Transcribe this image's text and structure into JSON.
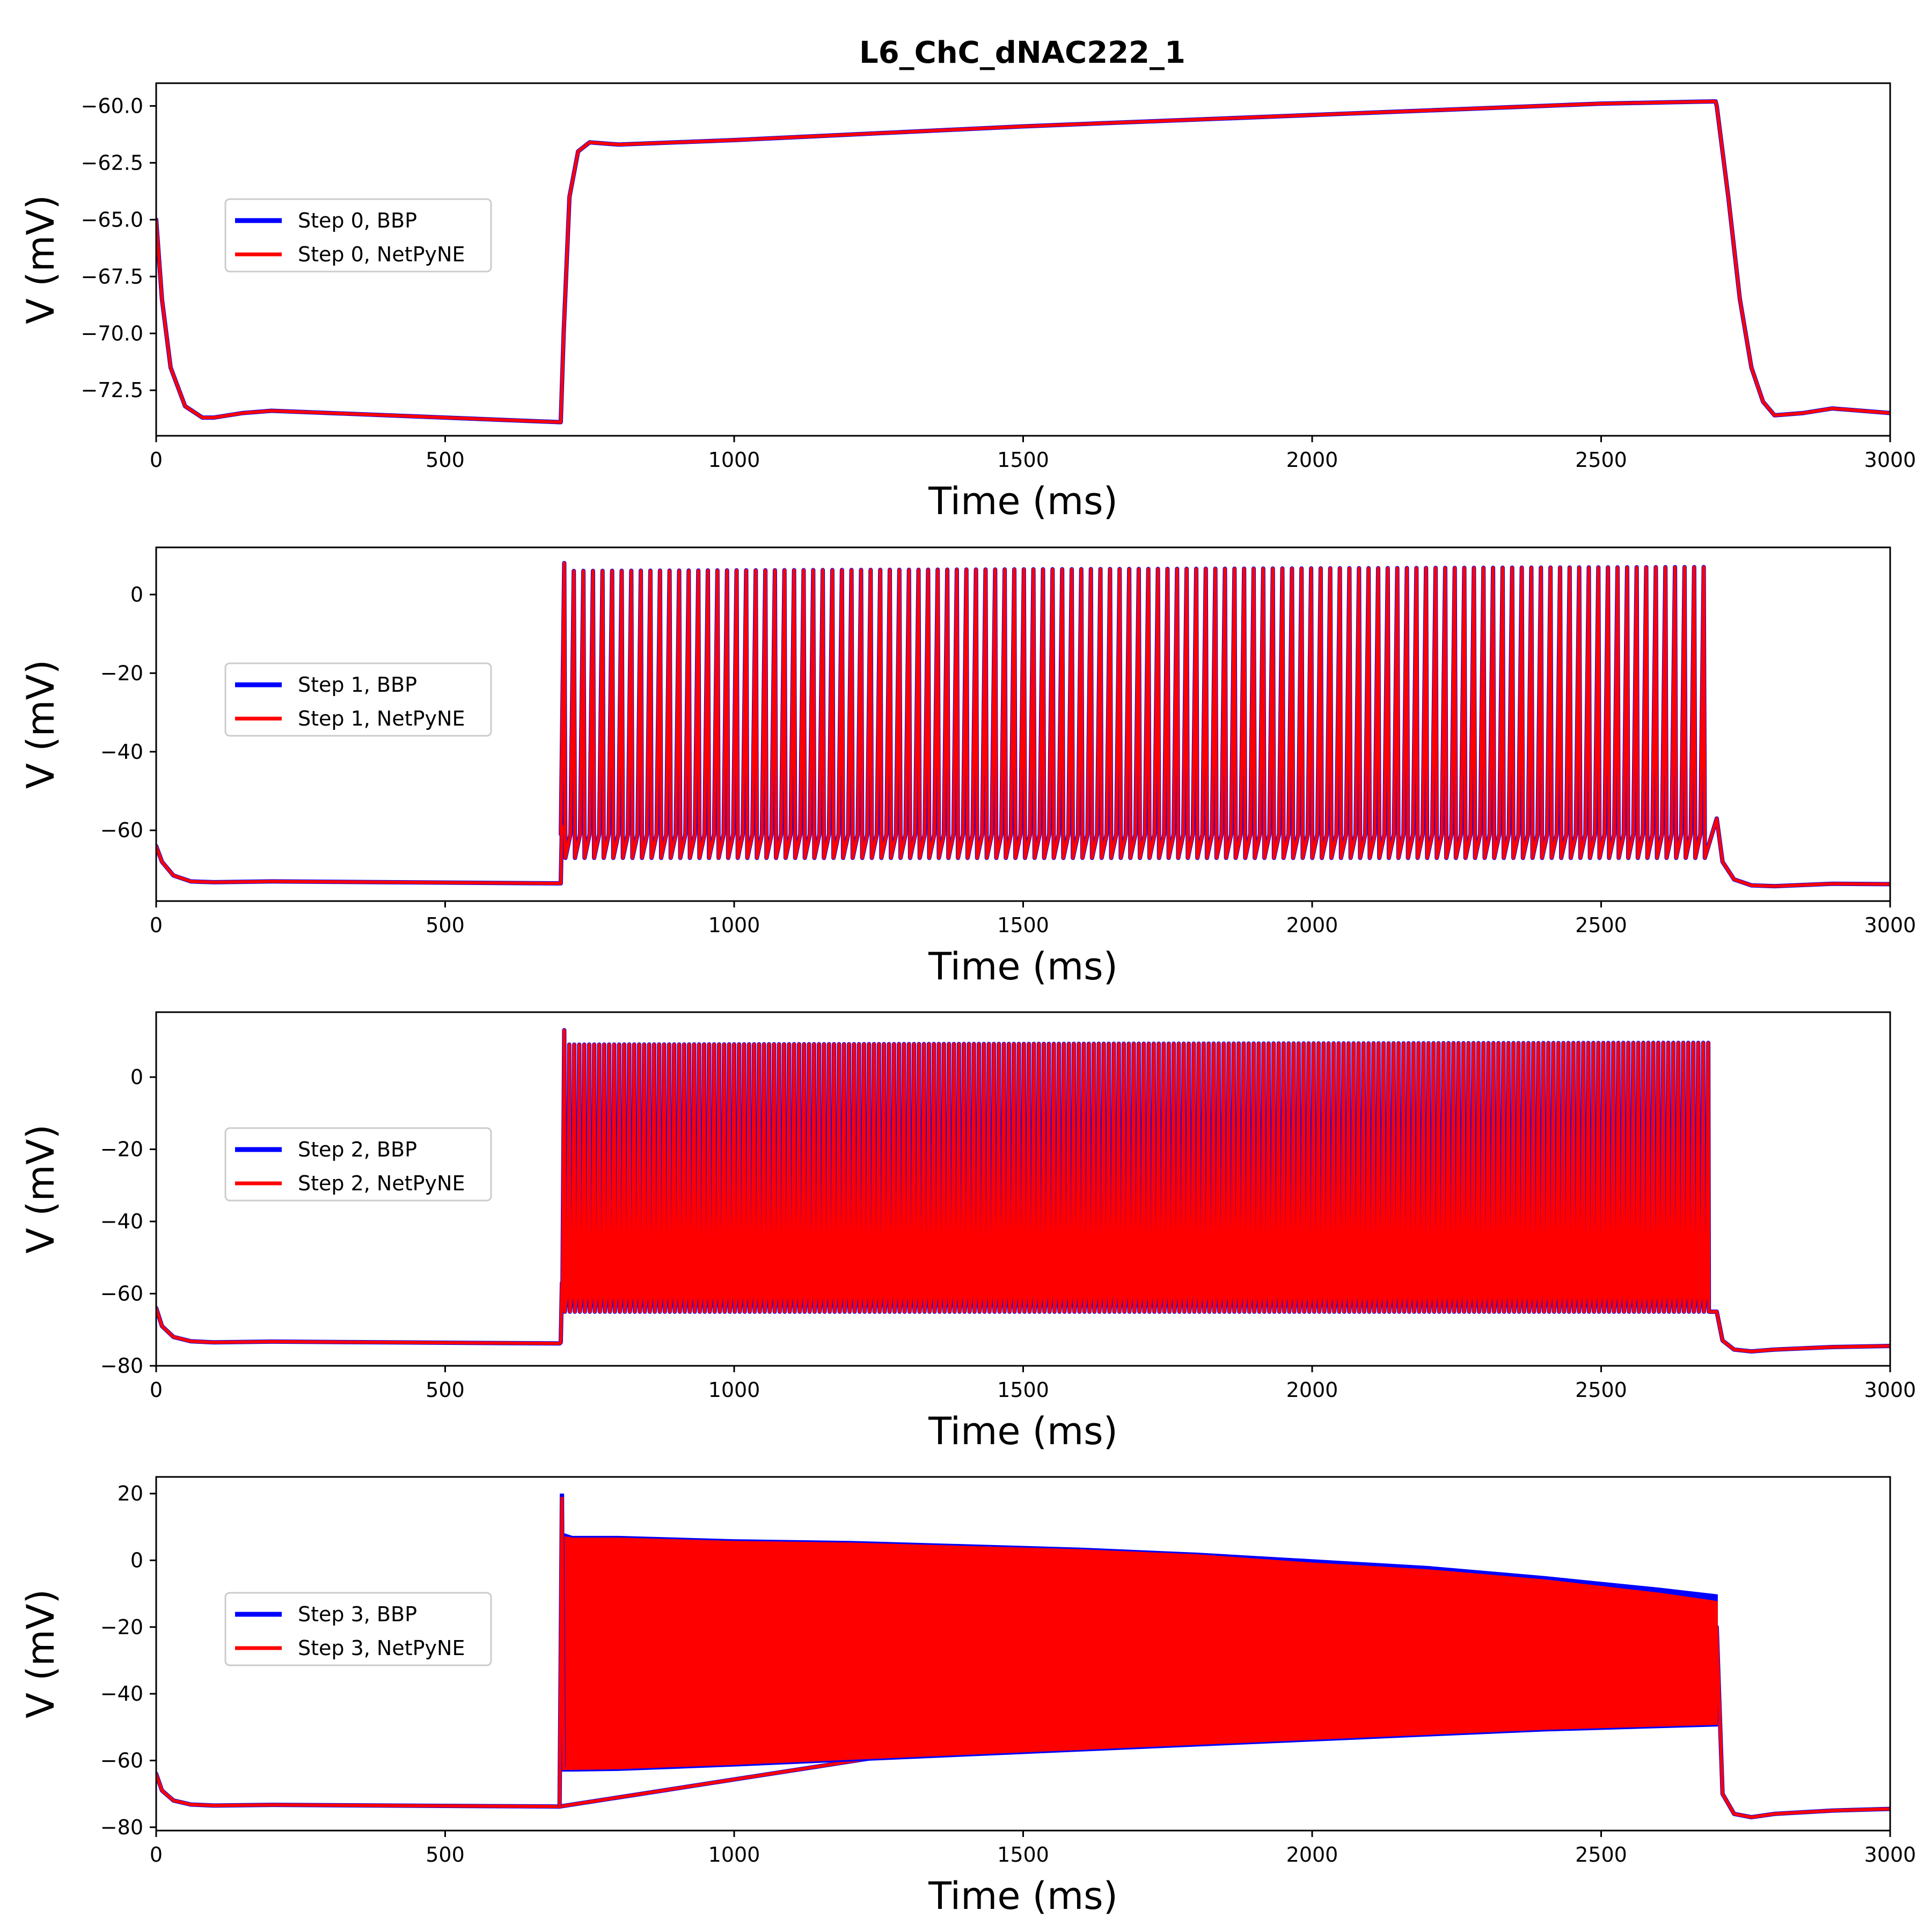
{
  "figure": {
    "title": "L6_ChC_dNAC222_1",
    "colors": {
      "bbp": "#0000ff",
      "netpyne": "#ff0000",
      "axes": "#000000",
      "legend_border": "#cccccc"
    }
  },
  "chart_data": [
    {
      "type": "line",
      "xlabel": "Time (ms)",
      "ylabel": "V (mV)",
      "xlim": [
        0,
        3000
      ],
      "ylim": [
        -74.5,
        -59.0
      ],
      "xticks": [
        0,
        500,
        1000,
        1500,
        2000,
        2500,
        3000
      ],
      "yticks": [
        -72.5,
        -70.0,
        -67.5,
        -65.0,
        -62.5,
        -60.0
      ],
      "ytick_labels": [
        "−72.5",
        "−70.0",
        "−67.5",
        "−65.0",
        "−62.5",
        "−60.0"
      ],
      "legend_position": "center-left",
      "stimulus": {
        "onset_ms": 700,
        "offset_ms": 2700,
        "spiking": false
      },
      "series": [
        {
          "name": "Step 0, BBP",
          "color": "#0000ff",
          "x": [
            0,
            10,
            25,
            50,
            80,
            100,
            150,
            200,
            300,
            500,
            698,
            700,
            705,
            715,
            730,
            750,
            800,
            1000,
            1500,
            2000,
            2500,
            2698,
            2700,
            2720,
            2740,
            2760,
            2780,
            2800,
            2850,
            2900,
            3000
          ],
          "y": [
            -65.0,
            -68.5,
            -71.5,
            -73.2,
            -73.7,
            -73.7,
            -73.5,
            -73.4,
            -73.5,
            -73.7,
            -73.9,
            -73.9,
            -70.0,
            -64.0,
            -62.0,
            -61.6,
            -61.7,
            -61.5,
            -60.9,
            -60.4,
            -59.9,
            -59.8,
            -60.0,
            -64.0,
            -68.5,
            -71.5,
            -73.0,
            -73.6,
            -73.5,
            -73.3,
            -73.5
          ]
        },
        {
          "name": "Step 0, NetPyNE",
          "color": "#ff0000",
          "x": [
            0,
            10,
            25,
            50,
            80,
            100,
            150,
            200,
            300,
            500,
            698,
            700,
            705,
            715,
            730,
            750,
            800,
            1000,
            1500,
            2000,
            2500,
            2698,
            2700,
            2720,
            2740,
            2760,
            2780,
            2800,
            2850,
            2900,
            3000
          ],
          "y": [
            -65.0,
            -68.5,
            -71.5,
            -73.2,
            -73.7,
            -73.7,
            -73.5,
            -73.4,
            -73.5,
            -73.7,
            -73.9,
            -73.9,
            -70.0,
            -64.0,
            -62.0,
            -61.6,
            -61.7,
            -61.5,
            -60.9,
            -60.4,
            -59.9,
            -59.8,
            -60.0,
            -64.0,
            -68.5,
            -71.5,
            -73.0,
            -73.6,
            -73.5,
            -73.3,
            -73.5
          ]
        }
      ]
    },
    {
      "type": "line",
      "xlabel": "Time (ms)",
      "ylabel": "V (mV)",
      "xlim": [
        0,
        3000
      ],
      "ylim": [
        -78,
        12
      ],
      "xticks": [
        0,
        500,
        1000,
        1500,
        2000,
        2500,
        3000
      ],
      "yticks": [
        -60,
        -40,
        -20,
        0
      ],
      "ytick_labels": [
        "−60",
        "−40",
        "−20",
        "0"
      ],
      "legend_position": "center-left",
      "stimulus": {
        "onset_ms": 700,
        "offset_ms": 2700,
        "spiking": true,
        "n_spikes": 120,
        "trough_mV": -67,
        "peak_first_mV": 8,
        "peak_mV": 6,
        "peak_late_mV": 7
      },
      "series": [
        {
          "name": "Step 1, BBP",
          "color": "#0000ff",
          "x": [
            0,
            10,
            30,
            60,
            100,
            200,
            400,
            698,
            2700,
            2710,
            2730,
            2760,
            2800,
            2900,
            3000
          ],
          "y": [
            -64,
            -68,
            -71.5,
            -73,
            -73.2,
            -73,
            -73.2,
            -73.5,
            -57,
            -68,
            -72.5,
            -74,
            -74.2,
            -73.6,
            -73.7
          ]
        },
        {
          "name": "Step 1, NetPyNE",
          "color": "#ff0000",
          "x": [
            0,
            10,
            30,
            60,
            100,
            200,
            400,
            698,
            2700,
            2710,
            2730,
            2760,
            2800,
            2900,
            3000
          ],
          "y": [
            -64,
            -68,
            -71.5,
            -73,
            -73.2,
            -73,
            -73.2,
            -73.5,
            -57,
            -68,
            -72.5,
            -74,
            -74.2,
            -73.6,
            -73.7
          ]
        }
      ]
    },
    {
      "type": "line",
      "xlabel": "Time (ms)",
      "ylabel": "V (mV)",
      "xlim": [
        0,
        3000
      ],
      "ylim": [
        -80,
        18
      ],
      "xticks": [
        0,
        500,
        1000,
        1500,
        2000,
        2500,
        3000
      ],
      "yticks": [
        -80,
        -60,
        -40,
        -20,
        0
      ],
      "ytick_labels": [
        "−80",
        "−60",
        "−40",
        "−20",
        "0"
      ],
      "legend_position": "center-left",
      "stimulus": {
        "onset_ms": 700,
        "offset_ms": 2700,
        "spiking": true,
        "n_spikes": 230,
        "trough_mV": -65,
        "peak_first_mV": 13,
        "peak_mV": 9,
        "peak_late_mV": 9.5
      },
      "series": [
        {
          "name": "Step 2, BBP",
          "color": "#0000ff",
          "x": [
            0,
            10,
            30,
            60,
            100,
            200,
            400,
            698,
            2700,
            2710,
            2730,
            2760,
            2800,
            2900,
            3000
          ],
          "y": [
            -64,
            -69,
            -72,
            -73.2,
            -73.5,
            -73.3,
            -73.5,
            -73.8,
            -65,
            -73,
            -75.5,
            -76,
            -75.5,
            -74.8,
            -74.5
          ]
        },
        {
          "name": "Step 2, NetPyNE",
          "color": "#ff0000",
          "x": [
            0,
            10,
            30,
            60,
            100,
            200,
            400,
            698,
            2700,
            2710,
            2730,
            2760,
            2800,
            2900,
            3000
          ],
          "y": [
            -64,
            -69,
            -72,
            -73.2,
            -73.5,
            -73.3,
            -73.5,
            -73.8,
            -65,
            -73,
            -75.5,
            -76,
            -75.5,
            -74.8,
            -74.5
          ]
        }
      ]
    },
    {
      "type": "area",
      "xlabel": "Time (ms)",
      "ylabel": "V (mV)",
      "xlim": [
        0,
        3000
      ],
      "ylim": [
        -81,
        25
      ],
      "xticks": [
        0,
        500,
        1000,
        1500,
        2000,
        2500,
        3000
      ],
      "yticks": [
        -80,
        -60,
        -40,
        -20,
        0,
        20
      ],
      "ytick_labels": [
        "−80",
        "−60",
        "−40",
        "−20",
        "0",
        "20"
      ],
      "legend_position": "center-left",
      "stimulus": {
        "onset_ms": 700,
        "offset_ms": 2700,
        "spiking": true,
        "first_spike_peak_mV": 20
      },
      "envelope": {
        "x": [
          702,
          720,
          800,
          1000,
          1200,
          1400,
          1600,
          1800,
          2000,
          2200,
          2400,
          2600,
          2700
        ],
        "bbp_upper": [
          8,
          7,
          7,
          6,
          5.5,
          4.5,
          3.5,
          2,
          0,
          -2,
          -5,
          -8.5,
          -10.5
        ],
        "bbp_lower": [
          -63,
          -63,
          -62.8,
          -61.5,
          -60,
          -58.5,
          -57,
          -55.5,
          -54,
          -52.5,
          -51,
          -50,
          -49.5
        ],
        "netpyne_upper": [
          7,
          6.5,
          6.5,
          5.5,
          5,
          4,
          3,
          1.5,
          -1,
          -3,
          -6,
          -10,
          -12.5
        ],
        "netpyne_lower": [
          -62.5,
          -62.5,
          -62.3,
          -61,
          -59.5,
          -58,
          -56.5,
          -55,
          -53.5,
          -52,
          -50.5,
          -49.5,
          -49
        ]
      },
      "series": [
        {
          "name": "Step 3, BBP",
          "color": "#0000ff",
          "x": [
            0,
            10,
            30,
            60,
            100,
            200,
            400,
            698,
            2700,
            2710,
            2730,
            2760,
            2800,
            2900,
            3000
          ],
          "y": [
            -64,
            -69,
            -72,
            -73.2,
            -73.5,
            -73.3,
            -73.5,
            -73.8,
            -20,
            -70,
            -76,
            -77,
            -76,
            -75,
            -74.5
          ]
        },
        {
          "name": "Step 3, NetPyNE",
          "color": "#ff0000",
          "x": [
            0,
            10,
            30,
            60,
            100,
            200,
            400,
            698,
            2700,
            2710,
            2730,
            2760,
            2800,
            2900,
            3000
          ],
          "y": [
            -64,
            -69,
            -72,
            -73.2,
            -73.5,
            -73.3,
            -73.5,
            -73.8,
            -20,
            -70,
            -76,
            -77,
            -76,
            -75,
            -74.5
          ]
        }
      ]
    }
  ]
}
